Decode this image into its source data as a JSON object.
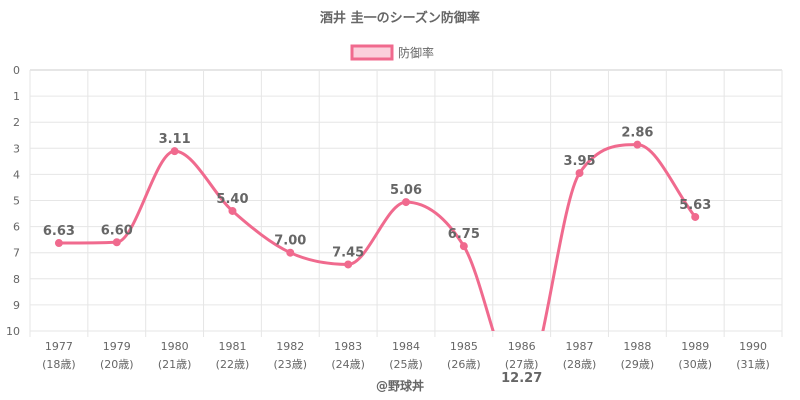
{
  "chart_data": {
    "type": "line",
    "title": "酒井 圭一のシーズン防御率",
    "legend": {
      "position": "top",
      "entries": [
        {
          "label": "防御率"
        }
      ]
    },
    "series": [
      {
        "name": "防御率",
        "color": "#f06a8e",
        "values": [
          6.63,
          6.6,
          3.11,
          5.4,
          7.0,
          7.45,
          5.06,
          6.75,
          12.27,
          3.95,
          2.86,
          5.63,
          null
        ]
      }
    ],
    "data_labels": [
      "6.63",
      "6.60",
      "3.11",
      "5.40",
      "7.00",
      "7.45",
      "5.06",
      "6.75",
      "12.27",
      "3.95",
      "2.86",
      "5.63",
      ""
    ],
    "categories": [
      {
        "year": "1977",
        "age": "(18歳)"
      },
      {
        "year": "1979",
        "age": "(20歳)"
      },
      {
        "year": "1980",
        "age": "(21歳)"
      },
      {
        "year": "1981",
        "age": "(22歳)"
      },
      {
        "year": "1982",
        "age": "(23歳)"
      },
      {
        "year": "1983",
        "age": "(24歳)"
      },
      {
        "year": "1984",
        "age": "(25歳)"
      },
      {
        "year": "1985",
        "age": "(26歳)"
      },
      {
        "year": "1986",
        "age": "(27歳)"
      },
      {
        "year": "1987",
        "age": "(28歳)"
      },
      {
        "year": "1988",
        "age": "(29歳)"
      },
      {
        "year": "1989",
        "age": "(30歳)"
      },
      {
        "year": "1990",
        "age": "(31歳)"
      }
    ],
    "y_ticks": [
      "0",
      "1",
      "2",
      "3",
      "4",
      "5",
      "6",
      "7",
      "8",
      "9",
      "10"
    ],
    "ylim": [
      0,
      10
    ],
    "y_reversed": true,
    "grid": true,
    "xlabel": "",
    "ylabel": ""
  },
  "credit": "@野球丼"
}
